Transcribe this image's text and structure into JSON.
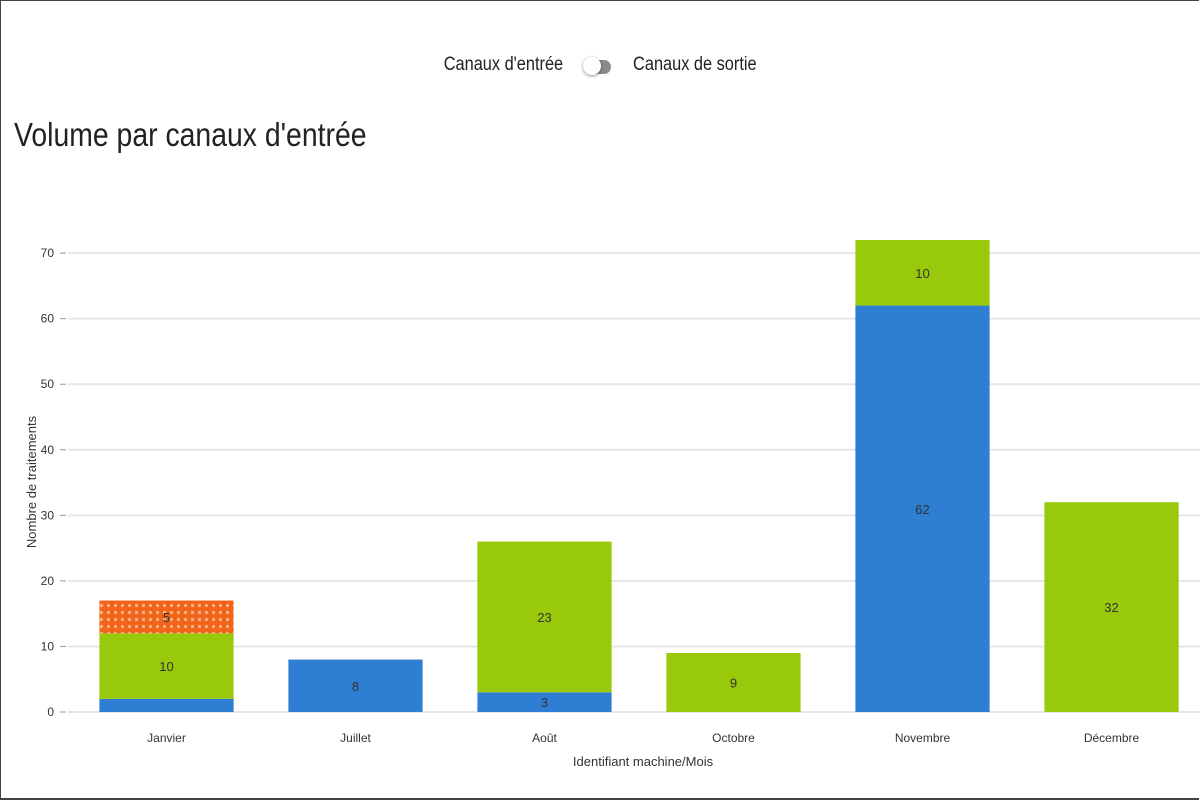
{
  "toggle": {
    "left_label": "Canaux d'entrée",
    "right_label": "Canaux de sortie"
  },
  "colors": {
    "blue": "#2e7ed3",
    "green": "#98c90a",
    "orange": "#f26419",
    "grid": "#e6e6e6"
  },
  "chart_data": {
    "type": "bar",
    "stacked": true,
    "title": "Volume par canaux d'entrée",
    "xlabel": "Identifiant machine/Mois",
    "ylabel": "Nombre de traitements",
    "ylim": [
      0,
      72
    ],
    "yticks": [
      0,
      10,
      20,
      30,
      40,
      50,
      60,
      70
    ],
    "grid": true,
    "categories": [
      "Janvier",
      "Juillet",
      "Août",
      "Octobre",
      "Novembre",
      "Décembre"
    ],
    "series": [
      {
        "color": "#2e7ed3",
        "pattern": "none",
        "values": [
          2,
          8,
          3,
          0,
          62,
          0
        ],
        "labels": [
          "",
          "8",
          "3",
          "",
          "62",
          ""
        ]
      },
      {
        "color": "#98c90a",
        "pattern": "none",
        "values": [
          10,
          0,
          23,
          9,
          10,
          32
        ],
        "labels": [
          "10",
          "",
          "23",
          "9",
          "10",
          "32"
        ]
      },
      {
        "color": "#f26419",
        "pattern": "dots",
        "values": [
          5,
          0,
          0,
          0,
          0,
          0
        ],
        "labels": [
          "5",
          "",
          "",
          "",
          "",
          ""
        ]
      }
    ]
  }
}
